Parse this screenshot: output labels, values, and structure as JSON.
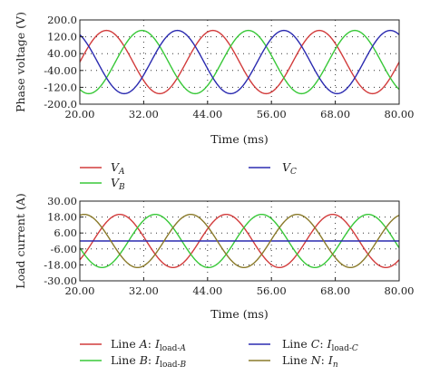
{
  "chart_data": [
    {
      "type": "line",
      "ylabel": "Phase voltage (V)",
      "xlabel": "Time (ms)",
      "xlim": [
        20,
        80
      ],
      "ylim": [
        -200,
        200
      ],
      "x_ticks": [
        "20.00",
        "32.00",
        "44.00",
        "56.00",
        "68.00",
        "80.00"
      ],
      "y_ticks": [
        "200.0",
        "120.0",
        "40.00",
        "-40.00",
        "-120.0",
        "-200.0"
      ],
      "y_tick_values": [
        200,
        120,
        40,
        -40,
        -120,
        -200
      ],
      "x_tick_values": [
        20,
        32,
        44,
        56,
        68,
        80
      ],
      "grid": "dotted",
      "series": [
        {
          "name": "V_A",
          "color": "#d23c3c",
          "amplitude": 150,
          "frequency_hz": 50,
          "phase_deg": 0
        },
        {
          "name": "V_B",
          "color": "#38c838",
          "amplitude": 150,
          "frequency_hz": 50,
          "phase_deg": -120
        },
        {
          "name": "V_C",
          "color": "#2b2bb0",
          "amplitude": 150,
          "frequency_hz": 50,
          "phase_deg": 120
        }
      ]
    },
    {
      "type": "line",
      "ylabel": "Load current (A)",
      "xlabel": "Time (ms)",
      "xlim": [
        20,
        80
      ],
      "ylim": [
        -30,
        30
      ],
      "x_ticks": [
        "20.00",
        "32.00",
        "44.00",
        "56.00",
        "68.00",
        "80.00"
      ],
      "y_ticks": [
        "30.00",
        "18.00",
        "6.00",
        "-6.00",
        "-18.00",
        "-30.00"
      ],
      "y_tick_values": [
        30,
        18,
        6,
        -6,
        -18,
        -30
      ],
      "x_tick_values": [
        20,
        32,
        44,
        56,
        68,
        80
      ],
      "grid": "dotted",
      "series": [
        {
          "name": "Line A: I_load-A",
          "color": "#d23c3c",
          "amplitude": 20,
          "frequency_hz": 50,
          "phase_deg": -45
        },
        {
          "name": "Line B: I_load-B",
          "color": "#38c838",
          "amplitude": 20,
          "frequency_hz": 50,
          "phase_deg": -165
        },
        {
          "name": "Line C: I_load-C",
          "color": "#2b2bb0",
          "amplitude": 0,
          "offset": 0,
          "frequency_hz": 50,
          "phase_deg": 0
        },
        {
          "name": "Line N: I_n",
          "color": "#8a7a2a",
          "amplitude": 20,
          "frequency_hz": 50,
          "phase_deg": 75
        }
      ]
    }
  ],
  "legend1": {
    "va": {
      "main": "V",
      "sub": "A"
    },
    "vb": {
      "main": "V",
      "sub": "B"
    },
    "vc": {
      "main": "V",
      "sub": "C"
    }
  },
  "legend2": {
    "a": {
      "prefix": "Line ",
      "letter": "A",
      "sep": ": ",
      "main": "I",
      "sub": "load-",
      "subletter": "A"
    },
    "b": {
      "prefix": "Line ",
      "letter": "B",
      "sep": ": ",
      "main": "I",
      "sub": "load-",
      "subletter": "B"
    },
    "c": {
      "prefix": "Line ",
      "letter": "C",
      "sep": ": ",
      "main": "I",
      "sub": "load-",
      "subletter": "C"
    },
    "n": {
      "prefix": "Line ",
      "letter": "N",
      "sep": ": ",
      "main": "I",
      "subletter": "n"
    }
  }
}
